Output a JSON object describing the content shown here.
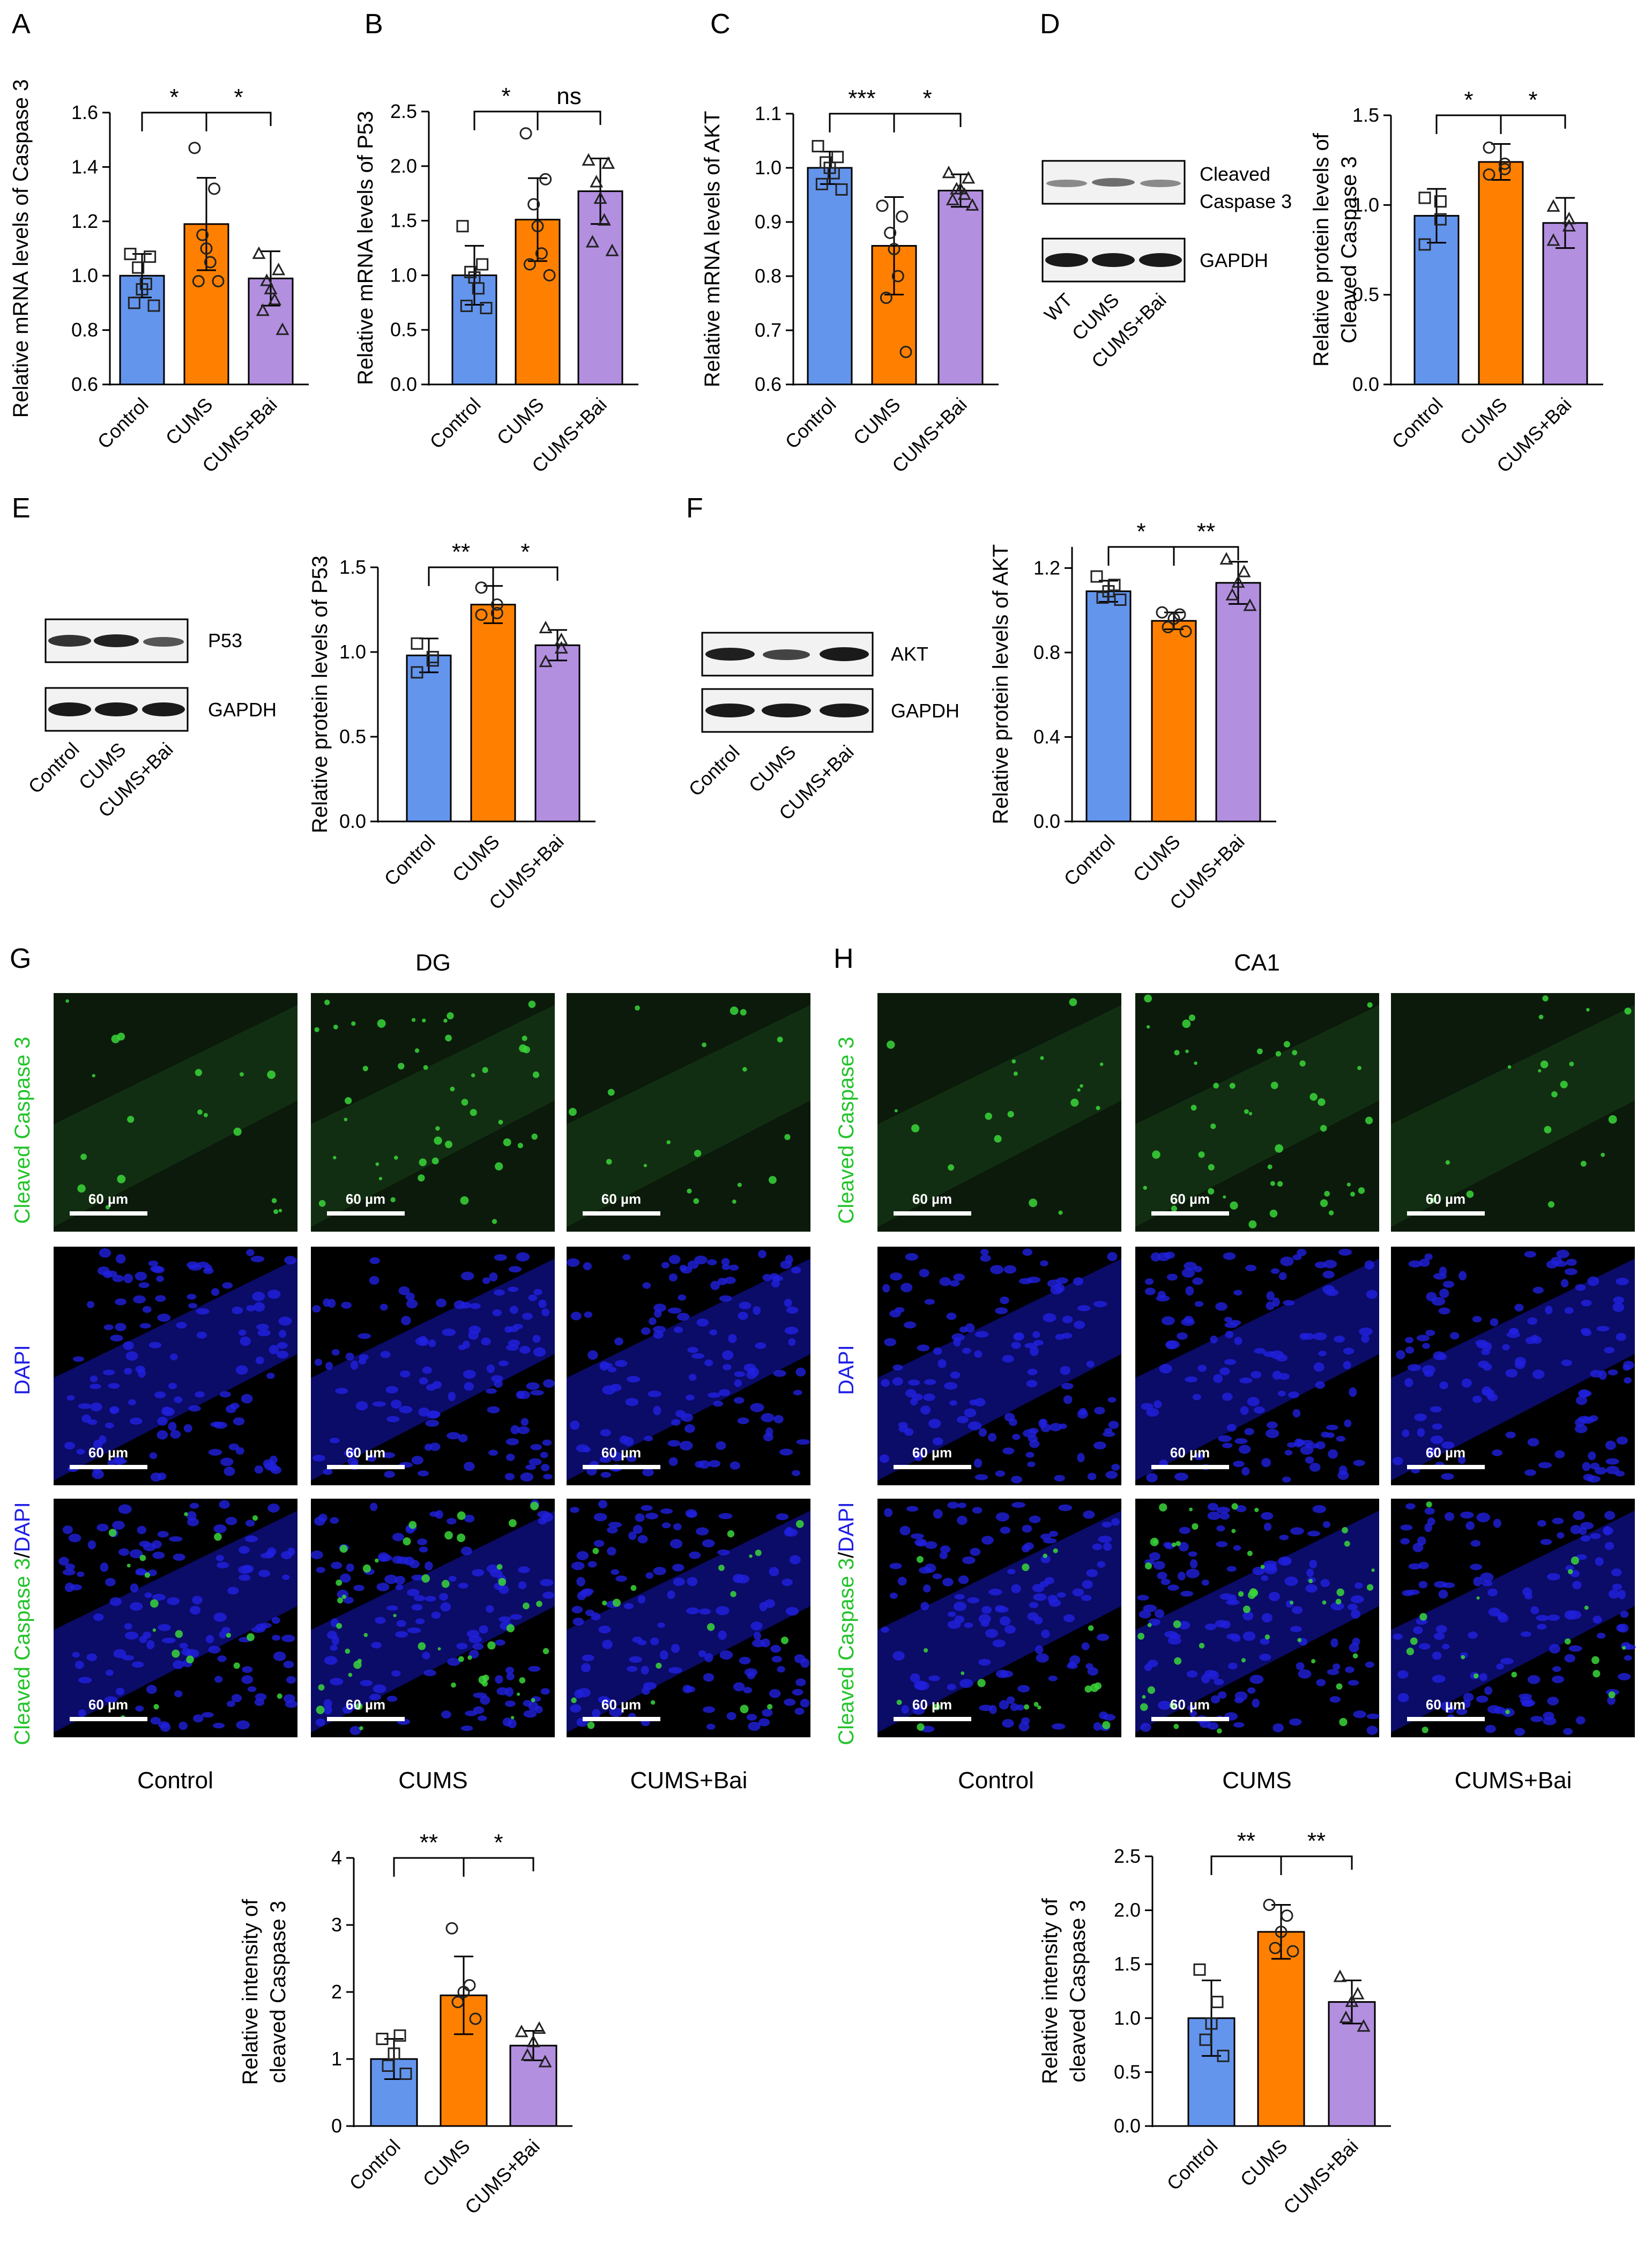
{
  "colors": {
    "control": "#6495ED",
    "cums": "#FF8000",
    "bai": "#B38FE0",
    "green_label": "#22C32A",
    "blue_label": "#1E1EE6"
  },
  "chart_data": [
    {
      "id": "A",
      "type": "bar",
      "panel_letter": "A",
      "categories": [
        "Control",
        "CUMS",
        "CUMS+Bai"
      ],
      "values": [
        1.0,
        1.19,
        0.99
      ],
      "errors": [
        0.08,
        0.17,
        0.1
      ],
      "points": [
        [
          1.08,
          1.07,
          1.03,
          0.95,
          0.97,
          0.9,
          0.89
        ],
        [
          1.47,
          1.32,
          1.15,
          1.1,
          1.05,
          0.98,
          0.98
        ],
        [
          1.08,
          1.02,
          0.98,
          0.95,
          0.91,
          0.87,
          0.8
        ]
      ],
      "markers": [
        "square",
        "circle",
        "triangle"
      ],
      "ylabel": "Relative mRNA levels of Caspase 3",
      "ylim": [
        0.6,
        1.6
      ],
      "yticks": [
        "0.6",
        "0.8",
        "1.0",
        "1.2",
        "1.4",
        "1.6"
      ],
      "significance": [
        {
          "from": 0,
          "to": 1,
          "label": "*"
        },
        {
          "from": 1,
          "to": 2,
          "label": "*"
        }
      ]
    },
    {
      "id": "B",
      "type": "bar",
      "panel_letter": "B",
      "categories": [
        "Control",
        "CUMS",
        "CUMS+Bai"
      ],
      "values": [
        1.0,
        1.51,
        1.77
      ],
      "errors": [
        0.27,
        0.38,
        0.3
      ],
      "points": [
        [
          1.45,
          1.1,
          1.03,
          0.98,
          0.88,
          0.72,
          0.7
        ],
        [
          2.3,
          1.88,
          1.65,
          1.45,
          1.2,
          1.1,
          1.0
        ],
        [
          2.05,
          2.02,
          1.85,
          1.7,
          1.5,
          1.3,
          1.22
        ]
      ],
      "markers": [
        "square",
        "circle",
        "triangle"
      ],
      "ylabel": "Relative mRNA levels of P53",
      "ylim": [
        0.0,
        2.5
      ],
      "yticks": [
        "0.0",
        "0.5",
        "1.0",
        "1.5",
        "2.0",
        "2.5"
      ],
      "significance": [
        {
          "from": 0,
          "to": 1,
          "label": "*"
        },
        {
          "from": 1,
          "to": 2,
          "label": "ns"
        }
      ]
    },
    {
      "id": "C",
      "type": "bar",
      "panel_letter": "C",
      "categories": [
        "Control",
        "CUMS",
        "CUMS+Bai"
      ],
      "values": [
        1.0,
        0.856,
        0.958
      ],
      "errors": [
        0.03,
        0.09,
        0.03
      ],
      "points": [
        [
          1.04,
          1.02,
          1.01,
          1.0,
          0.99,
          0.97,
          0.96
        ],
        [
          0.93,
          0.91,
          0.88,
          0.85,
          0.8,
          0.76,
          0.66
        ],
        [
          0.99,
          0.98,
          0.96,
          0.96,
          0.95,
          0.94,
          0.93
        ]
      ],
      "markers": [
        "square",
        "circle",
        "triangle"
      ],
      "ylabel": "Relative mRNA levels of AKT",
      "ylim": [
        0.6,
        1.1
      ],
      "yticks": [
        "0.6",
        "0.7",
        "0.8",
        "0.9",
        "1.0",
        "1.1"
      ],
      "significance": [
        {
          "from": 0,
          "to": 1,
          "label": "***"
        },
        {
          "from": 1,
          "to": 2,
          "label": "*"
        }
      ]
    },
    {
      "id": "D",
      "type": "bar",
      "panel_letter": "",
      "categories": [
        "Control",
        "CUMS",
        "CUMS+Bai"
      ],
      "values": [
        0.94,
        1.24,
        0.9
      ],
      "errors": [
        0.15,
        0.1,
        0.14
      ],
      "points": [
        [
          1.04,
          1.02,
          0.92,
          0.78
        ],
        [
          1.32,
          1.23,
          1.2,
          1.17
        ],
        [
          0.99,
          0.92,
          0.88,
          0.8
        ]
      ],
      "markers": [
        "square",
        "circle",
        "triangle"
      ],
      "ylabel": "Relative protein levels of Cleaved Caspase 3",
      "ylabel_lines": [
        "Relative protein levels of",
        "Cleaved Caspase 3"
      ],
      "ylim": [
        0.0,
        1.5
      ],
      "yticks": [
        "0.0",
        "0.5",
        "1.0",
        "1.5"
      ],
      "significance": [
        {
          "from": 0,
          "to": 1,
          "label": "*"
        },
        {
          "from": 1,
          "to": 2,
          "label": "*"
        }
      ]
    },
    {
      "id": "E",
      "type": "bar",
      "panel_letter": "",
      "categories": [
        "Control",
        "CUMS",
        "CUMS+Bai"
      ],
      "values": [
        0.98,
        1.28,
        1.04
      ],
      "errors": [
        0.1,
        0.11,
        0.09
      ],
      "points": [
        [
          1.05,
          0.97,
          0.95,
          0.88
        ],
        [
          1.38,
          1.28,
          1.23,
          1.22
        ],
        [
          1.14,
          1.07,
          1.02,
          0.94
        ]
      ],
      "markers": [
        "square",
        "circle",
        "triangle"
      ],
      "ylabel": "Relative protein levels of P53",
      "ylim": [
        0.0,
        1.5
      ],
      "yticks": [
        "0.0",
        "0.5",
        "1.0",
        "1.5"
      ],
      "significance": [
        {
          "from": 0,
          "to": 1,
          "label": "**"
        },
        {
          "from": 1,
          "to": 2,
          "label": "*"
        }
      ]
    },
    {
      "id": "F",
      "type": "bar",
      "panel_letter": "",
      "categories": [
        "Control",
        "CUMS",
        "CUMS+Bai"
      ],
      "values": [
        1.09,
        0.95,
        1.13
      ],
      "errors": [
        0.05,
        0.04,
        0.1
      ],
      "points": [
        [
          1.16,
          1.12,
          1.09,
          1.06,
          1.05
        ],
        [
          0.99,
          0.98,
          0.96,
          0.92,
          0.9
        ],
        [
          1.24,
          1.18,
          1.13,
          1.07,
          1.02
        ]
      ],
      "markers": [
        "square",
        "circle",
        "triangle"
      ],
      "ylabel": "Relative protein levels of AKT",
      "ylim": [
        0.0,
        1.3
      ],
      "yticks": [
        "0.0",
        "0.4",
        "0.8",
        "1.2"
      ],
      "significance": [
        {
          "from": 0,
          "to": 1,
          "label": "*"
        },
        {
          "from": 1,
          "to": 2,
          "label": "**"
        }
      ]
    },
    {
      "id": "G_quant",
      "type": "bar",
      "panel_letter": "",
      "categories": [
        "Control",
        "CUMS",
        "CUMS+Bai"
      ],
      "values": [
        1.0,
        1.95,
        1.2
      ],
      "errors": [
        0.3,
        0.58,
        0.22
      ],
      "points": [
        [
          1.3,
          1.35,
          1.08,
          0.9,
          0.78
        ],
        [
          2.95,
          2.1,
          2.0,
          1.85,
          1.6
        ],
        [
          1.4,
          1.45,
          1.25,
          1.05,
          0.95
        ]
      ],
      "markers": [
        "square",
        "circle",
        "triangle"
      ],
      "ylabel": "Relative intensity of cleaved Caspase 3",
      "ylabel_lines": [
        "Relative intensity of",
        "cleaved Caspase 3"
      ],
      "ylim": [
        0,
        4
      ],
      "yticks": [
        "0",
        "1",
        "2",
        "3",
        "4"
      ],
      "significance": [
        {
          "from": 0,
          "to": 1,
          "label": "**"
        },
        {
          "from": 1,
          "to": 2,
          "label": "*"
        }
      ]
    },
    {
      "id": "H_quant",
      "type": "bar",
      "panel_letter": "",
      "categories": [
        "Control",
        "CUMS",
        "CUMS+Bai"
      ],
      "values": [
        1.0,
        1.8,
        1.15
      ],
      "errors": [
        0.35,
        0.25,
        0.2
      ],
      "points": [
        [
          1.45,
          1.15,
          0.95,
          0.8,
          0.65
        ],
        [
          2.05,
          1.95,
          1.8,
          1.65,
          1.62
        ],
        [
          1.38,
          1.22,
          1.15,
          1.0,
          0.92
        ]
      ],
      "markers": [
        "square",
        "circle",
        "triangle"
      ],
      "ylabel": "Relative intensity of cleaved Caspase 3",
      "ylabel_lines": [
        "Relative intensity of",
        "cleaved Caspase 3"
      ],
      "ylim": [
        0.0,
        2.5
      ],
      "yticks": [
        "0.0",
        "0.5",
        "1.0",
        "1.5",
        "2.0",
        "2.5"
      ],
      "significance": [
        {
          "from": 0,
          "to": 1,
          "label": "**"
        },
        {
          "from": 1,
          "to": 2,
          "label": "**"
        }
      ]
    }
  ],
  "panels": {
    "D_letter": "D",
    "E_letter": "E",
    "F_letter": "F",
    "G_letter": "G",
    "H_letter": "H"
  },
  "blots": {
    "D": {
      "bands": [
        "Cleaved",
        "Caspase 3",
        "GAPDH"
      ],
      "lanes": [
        "WT",
        "CUMS",
        "CUMS+Bai"
      ]
    },
    "E": {
      "bands": [
        "P53",
        "GAPDH"
      ],
      "lanes": [
        "Control",
        "CUMS",
        "CUMS+Bai"
      ]
    },
    "F": {
      "bands": [
        "AKT",
        "GAPDH"
      ],
      "lanes": [
        "Control",
        "CUMS",
        "CUMS+Bai"
      ]
    }
  },
  "microscopy": {
    "G_title": "DG",
    "H_title": "CA1",
    "row_labels": [
      "Cleaved Caspase 3",
      "DAPI"
    ],
    "merge_label_green": "Cleaved Caspase 3",
    "merge_label_sep": "/",
    "merge_label_blue": "DAPI",
    "scale_bar": "60 µm",
    "columns": [
      "Control",
      "CUMS",
      "CUMS+Bai"
    ]
  }
}
